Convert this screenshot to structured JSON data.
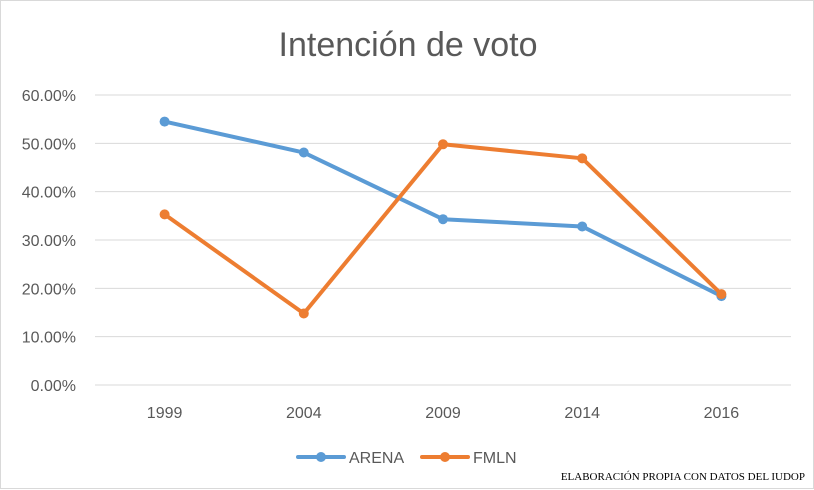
{
  "chart_data": {
    "type": "line",
    "title": "Intención de voto",
    "xlabel": "",
    "ylabel": "",
    "categories": [
      "1999",
      "2004",
      "2009",
      "2014",
      "2016"
    ],
    "y_ticks": [
      "0.00%",
      "10.00%",
      "20.00%",
      "30.00%",
      "40.00%",
      "50.00%",
      "60.00%"
    ],
    "ylim": [
      0,
      60
    ],
    "grid": "horizontal",
    "legend_position": "bottom",
    "series": [
      {
        "name": "ARENA",
        "color": "#5b9bd5",
        "values": [
          54.5,
          48.1,
          34.3,
          32.8,
          18.4
        ]
      },
      {
        "name": "FMLN",
        "color": "#ed7d31",
        "values": [
          35.3,
          14.8,
          49.8,
          46.9,
          18.8
        ]
      }
    ],
    "annotation": "ELABORACIÓN PROPIA CON DATOS DEL IUDOP"
  }
}
